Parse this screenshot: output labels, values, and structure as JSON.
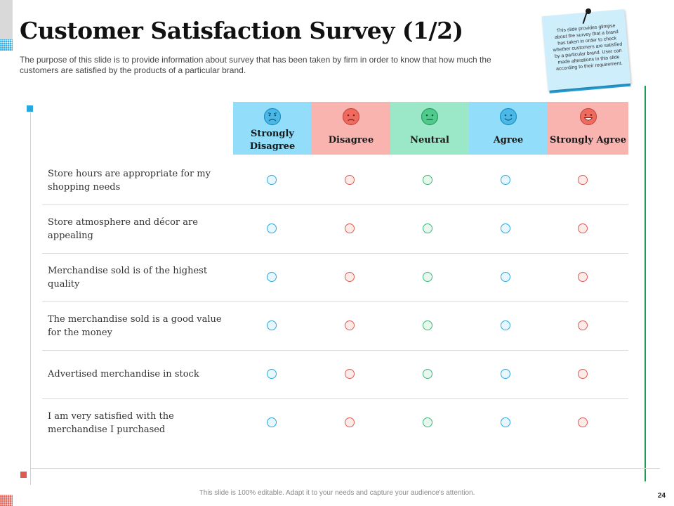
{
  "slide": {
    "title": "Customer Satisfaction Survey (1/2)",
    "subtitle": "The purpose of this slide is to provide  information  about survey that has been taken by firm in order to know that how much the customers are satisfied by the products of a particular brand.",
    "sticky_note": "This slide provides glimpse about the survey that a brand has taken in order to check whether customers are satisfied by a particular brand. User can made alterations in this slide according to their requirement.",
    "footer": "This slide is 100% editable.  Adapt it to your needs and capture your audience's attention.",
    "page_number": "24"
  },
  "survey": {
    "columns": [
      {
        "label": "Strongly Disagree",
        "icon": "very-sad-face-icon",
        "color": "#92ddf9"
      },
      {
        "label": "Disagree",
        "icon": "sad-face-icon",
        "color": "#f9b4b0"
      },
      {
        "label": "Neutral",
        "icon": "neutral-face-icon",
        "color": "#9ae8c7"
      },
      {
        "label": "Agree",
        "icon": "smile-face-icon",
        "color": "#92ddf9"
      },
      {
        "label": "Strongly Agree",
        "icon": "big-smile-face-icon",
        "color": "#f9b4b0"
      }
    ],
    "rows": [
      {
        "statement": "Store hours are appropriate for my shopping needs"
      },
      {
        "statement": "Store atmosphere and décor are appealing"
      },
      {
        "statement": "Merchandise sold is of the highest quality"
      },
      {
        "statement": "The merchandise sold is a good value for the money"
      },
      {
        "statement": "Advertised merchandise in stock"
      },
      {
        "statement": "I am very satisfied with the merchandise I purchased"
      }
    ]
  },
  "colors": {
    "accent_blue": "#29a8e0",
    "accent_red": "#e05a4f",
    "accent_green": "#1f9d57"
  }
}
